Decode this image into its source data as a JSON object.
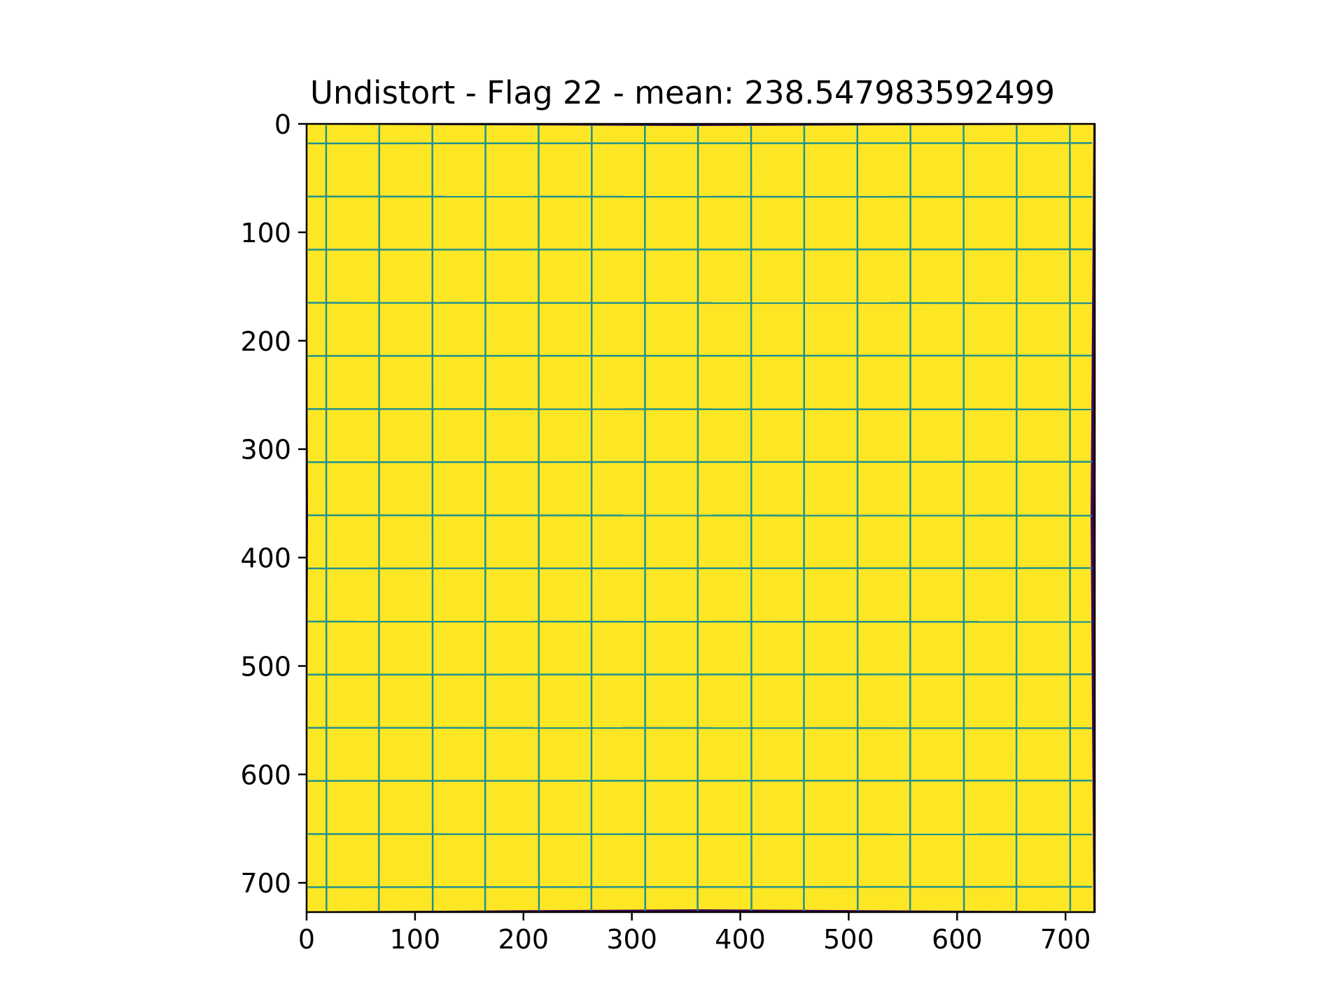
{
  "chart_data": {
    "type": "heatmap",
    "title": "Undistort - Flag 22 - mean: 238.547983592499",
    "xlabel": "",
    "ylabel": "",
    "xlim": [
      0,
      727
    ],
    "ylim": [
      727,
      0
    ],
    "x_ticks": [
      0,
      100,
      200,
      300,
      400,
      500,
      600,
      700
    ],
    "y_ticks": [
      0,
      100,
      200,
      300,
      400,
      500,
      600,
      700
    ],
    "x_tick_labels": [
      "0",
      "100",
      "200",
      "300",
      "400",
      "500",
      "600",
      "700"
    ],
    "y_tick_labels": [
      "0",
      "100",
      "200",
      "300",
      "400",
      "500",
      "600",
      "700"
    ],
    "image_content": "undistorted checkerboard grid pattern",
    "grid_line_positions": [
      18,
      67,
      116,
      165,
      214,
      263,
      312,
      361,
      410,
      459,
      508,
      557,
      606,
      655,
      704
    ],
    "colors": {
      "background_value_color": "#fde725",
      "line_value_color": "#21918c",
      "border_value_color": "#440154"
    },
    "grid": false,
    "legend": "none"
  }
}
